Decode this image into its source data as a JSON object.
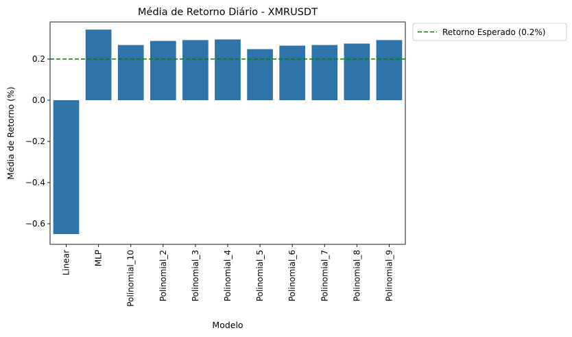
{
  "chart_data": {
    "type": "bar",
    "title": "Média de Retorno Diário - XMRUSDT",
    "xlabel": "Modelo",
    "ylabel": "Média de Retorno (%)",
    "categories": [
      "Linear",
      "MLP",
      "Polinomial_10",
      "Polinomial_2",
      "Polinomial_3",
      "Polinomial_4",
      "Polinomial_5",
      "Polinomial_6",
      "Polinomial_7",
      "Polinomial_8",
      "Polinomial_9"
    ],
    "values": [
      -0.65,
      0.343,
      0.268,
      0.288,
      0.292,
      0.295,
      0.248,
      0.265,
      0.268,
      0.275,
      0.292
    ],
    "yticks": [
      -0.6,
      -0.4,
      -0.2,
      0.0,
      0.2
    ],
    "ytick_labels": [
      "−0.6",
      "−0.4",
      "−0.2",
      "0.0",
      "0.2"
    ],
    "ylim": [
      -0.7,
      0.38
    ],
    "bar_color": "#2e74a8",
    "reference_line": {
      "value": 0.2,
      "label": "Retorno Esperado (0.2%)",
      "color": "#008000",
      "style": "dashed"
    },
    "legend_position": "outside-top-right",
    "grid": false
  }
}
